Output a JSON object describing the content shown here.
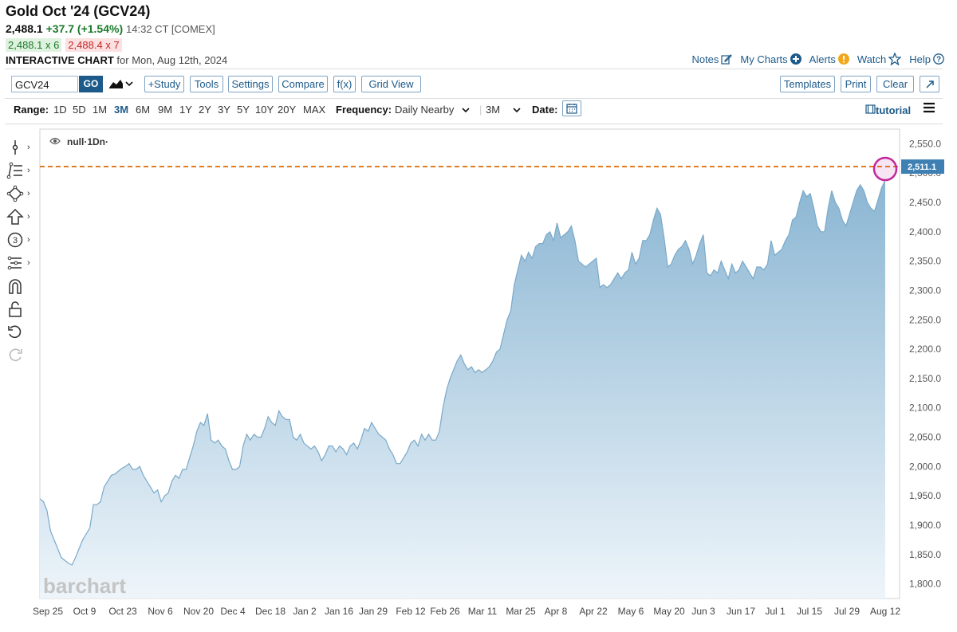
{
  "header": {
    "title": "Gold Oct '24 (GCV24)",
    "last": "2,488.1",
    "change": "+37.7 (+1.54%)",
    "time": "14:32 CT [COMEX]",
    "bid": "2,488.1 x 6",
    "ask": "2,488.4 x 7",
    "interactive_label": "INTERACTIVE CHART",
    "interactive_date": "for Mon, Aug 12th, 2024"
  },
  "top_links": {
    "notes": "Notes",
    "my_charts": "My Charts",
    "alerts": "Alerts",
    "watch": "Watch",
    "help": "Help"
  },
  "toolbar": {
    "symbol": "GCV24",
    "go": "GO",
    "study": "+Study",
    "tools": "Tools",
    "settings": "Settings",
    "compare": "Compare",
    "fx": "f(x)",
    "grid_view": "Grid View",
    "templates": "Templates",
    "print": "Print",
    "clear": "Clear"
  },
  "range": {
    "label": "Range:",
    "options": [
      "1D",
      "5D",
      "1M",
      "3M",
      "6M",
      "9M",
      "1Y",
      "2Y",
      "3Y",
      "5Y",
      "10Y",
      "20Y",
      "MAX"
    ],
    "selected": "3M",
    "frequency_label": "Frequency:",
    "frequency": "Daily Nearby",
    "period": "3M",
    "date_label": "Date:",
    "tutorial": "tutorial"
  },
  "legend": {
    "text": "null·1Dn·"
  },
  "watermark": "barchart",
  "colors": {
    "area_top": "#8bb6d3",
    "area_bottom": "#eef5fa",
    "line": "#7aa9c9",
    "ref_line": "#e07b22",
    "ref_badge": "#3f80b4",
    "marker": "#c2289b"
  },
  "chart_data": {
    "type": "area",
    "ylim": [
      1775,
      2575
    ],
    "yticks": [
      "2,550.0",
      "2,500.0",
      "2,450.0",
      "2,400.0",
      "2,350.0",
      "2,300.0",
      "2,250.0",
      "2,200.0",
      "2,150.0",
      "2,100.0",
      "2,050.0",
      "2,000.0",
      "1,950.0",
      "1,900.0",
      "1,850.0",
      "1,800.0"
    ],
    "ytick_values": [
      2550,
      2500,
      2450,
      2400,
      2350,
      2300,
      2250,
      2200,
      2150,
      2100,
      2050,
      2000,
      1950,
      1900,
      1850,
      1800
    ],
    "xticks": [
      "Sep 25",
      "Oct 9",
      "Oct 23",
      "Nov 6",
      "Nov 20",
      "Dec 4",
      "Dec 18",
      "Jan 2",
      "Jan 16",
      "Jan 29",
      "Feb 12",
      "Feb 26",
      "Mar 11",
      "Mar 25",
      "Apr 8",
      "Apr 22",
      "May 6",
      "May 20",
      "Jun 3",
      "Jun 17",
      "Jul 1",
      "Jul 15",
      "Jul 29",
      "Aug 12"
    ],
    "ref_value": 2511.1,
    "ref_label": "2,511.1",
    "values": [
      1945,
      1940,
      1925,
      1890,
      1875,
      1860,
      1845,
      1840,
      1835,
      1832,
      1845,
      1860,
      1875,
      1885,
      1895,
      1935,
      1935,
      1940,
      1965,
      1975,
      1985,
      1987,
      1992,
      1997,
      2000,
      2005,
      1995,
      1995,
      2000,
      1985,
      1975,
      1965,
      1955,
      1960,
      1940,
      1950,
      1955,
      1975,
      1985,
      1980,
      1995,
      1995,
      2015,
      2035,
      2060,
      2075,
      2070,
      2090,
      2045,
      2040,
      2045,
      2035,
      2030,
      2010,
      1995,
      1995,
      2000,
      2035,
      2055,
      2045,
      2055,
      2050,
      2050,
      2065,
      2085,
      2075,
      2070,
      2095,
      2085,
      2080,
      2080,
      2050,
      2045,
      2055,
      2040,
      2035,
      2030,
      2035,
      2025,
      2010,
      2020,
      2035,
      2035,
      2025,
      2035,
      2030,
      2020,
      2035,
      2040,
      2030,
      2045,
      2065,
      2060,
      2075,
      2065,
      2055,
      2050,
      2045,
      2030,
      2020,
      2005,
      2005,
      2015,
      2025,
      2040,
      2045,
      2035,
      2055,
      2045,
      2055,
      2045,
      2045,
      2060,
      2100,
      2130,
      2150,
      2165,
      2180,
      2190,
      2175,
      2165,
      2170,
      2160,
      2165,
      2160,
      2165,
      2170,
      2180,
      2195,
      2200,
      2225,
      2250,
      2265,
      2310,
      2335,
      2360,
      2350,
      2365,
      2355,
      2375,
      2380,
      2380,
      2395,
      2400,
      2385,
      2415,
      2390,
      2395,
      2400,
      2410,
      2385,
      2350,
      2345,
      2340,
      2345,
      2350,
      2355,
      2305,
      2310,
      2305,
      2310,
      2320,
      2330,
      2320,
      2330,
      2335,
      2365,
      2345,
      2355,
      2385,
      2385,
      2395,
      2420,
      2440,
      2430,
      2390,
      2340,
      2345,
      2360,
      2370,
      2375,
      2385,
      2370,
      2345,
      2360,
      2380,
      2395,
      2330,
      2325,
      2335,
      2330,
      2350,
      2335,
      2320,
      2345,
      2330,
      2335,
      2350,
      2340,
      2330,
      2320,
      2340,
      2340,
      2335,
      2345,
      2385,
      2360,
      2365,
      2370,
      2385,
      2395,
      2420,
      2425,
      2450,
      2470,
      2460,
      2465,
      2440,
      2410,
      2400,
      2400,
      2440,
      2470,
      2450,
      2440,
      2420,
      2410,
      2430,
      2450,
      2470,
      2480,
      2470,
      2450,
      2440,
      2435,
      2455,
      2475,
      2488.1
    ]
  }
}
